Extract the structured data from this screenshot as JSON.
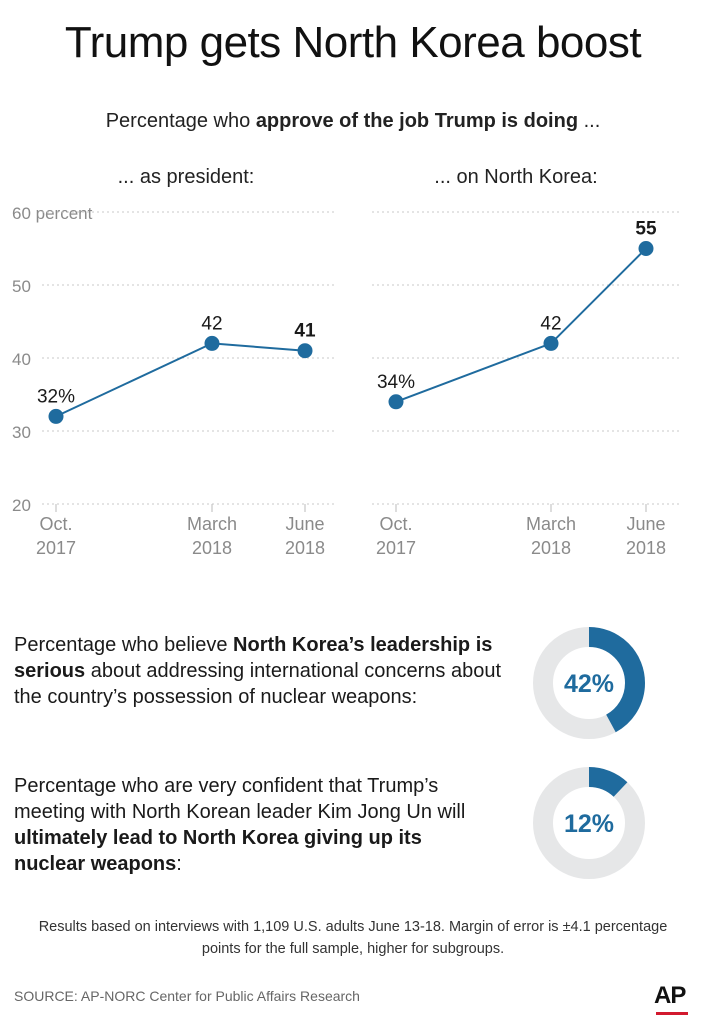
{
  "title": "Trump gets North Korea boost",
  "subtitle": {
    "prefix": "Percentage who ",
    "bold": "approve of the job Trump is doing",
    "suffix": " ..."
  },
  "chart_data": [
    {
      "type": "line",
      "title": "... as president:",
      "x": [
        "Oct. 2017",
        "March 2018",
        "June 2018"
      ],
      "series": [
        {
          "values": [
            32,
            42,
            41
          ]
        }
      ],
      "data_labels": [
        "32%",
        "42",
        "41"
      ],
      "ylim": [
        20,
        60
      ],
      "yticks": [
        "20",
        "30",
        "40",
        "50",
        "60 percent"
      ],
      "grid": true,
      "color": "#1f6b9e"
    },
    {
      "type": "line",
      "title": "... on North Korea:",
      "x": [
        "Oct. 2017",
        "March 2018",
        "June 2018"
      ],
      "series": [
        {
          "values": [
            34,
            42,
            55
          ]
        }
      ],
      "data_labels": [
        "34%",
        "42",
        "55"
      ],
      "ylim": [
        20,
        60
      ],
      "grid": true,
      "color": "#1f6b9e"
    },
    {
      "type": "pie",
      "values": [
        42,
        58
      ],
      "label": "42%",
      "color": "#1f6b9e",
      "track_color": "#e6e7e8"
    },
    {
      "type": "pie",
      "values": [
        12,
        88
      ],
      "label": "12%",
      "color": "#1f6b9e",
      "track_color": "#e6e7e8"
    }
  ],
  "question1": {
    "prefix": "Percentage who believe ",
    "bold": "North Korea’s leadership is serious",
    "suffix": " about addressing international concerns about the country’s possession of nuclear weapons:"
  },
  "question2": {
    "prefix": "Percentage who are very confident that Trump’s meeting with North Korean leader Kim Jong Un will ",
    "bold": "ultimately lead to North Korea giving up its nuclear weapons",
    "suffix": ":"
  },
  "footnote": "Results based on interviews with 1,109 U.S. adults June 13-18. Margin of error is  ±4.1 percentage points for the full sample, higher for subgroups.",
  "source": "SOURCE: AP-NORC Center for Public Affairs Research",
  "logo": "AP"
}
